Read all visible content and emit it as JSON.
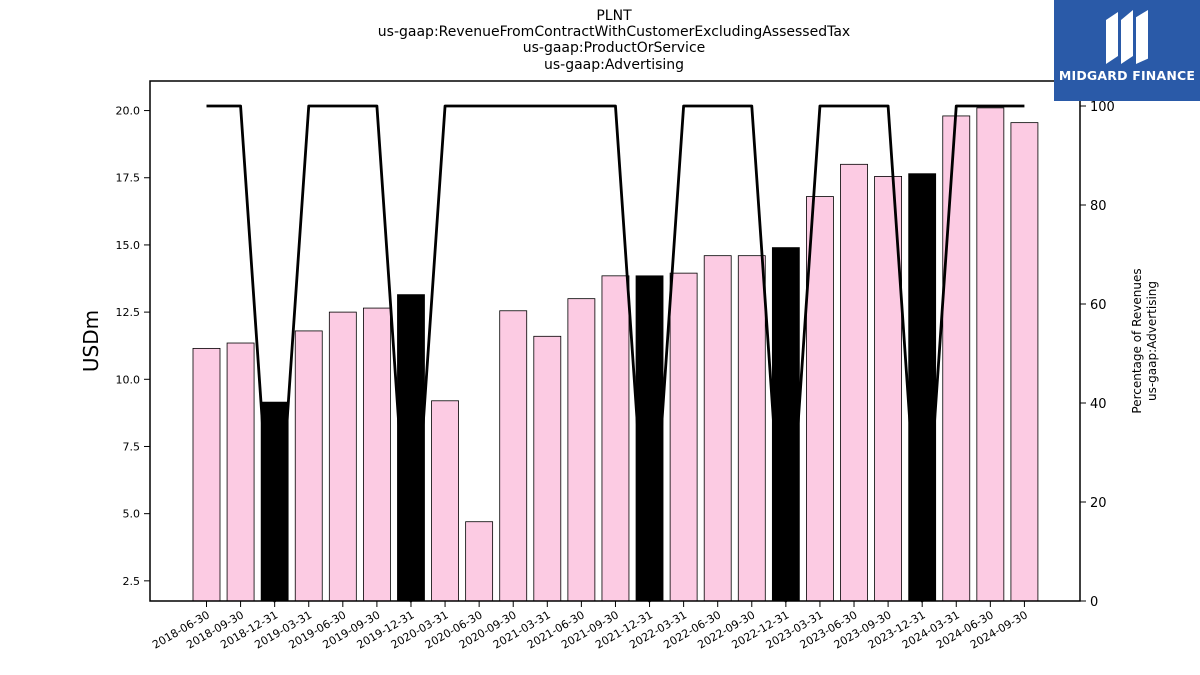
{
  "logo": {
    "text": "MIDGARD FINANCE"
  },
  "chart_data": {
    "type": "bar",
    "title_lines": [
      "PLNT",
      "us-gaap:RevenueFromContractWithCustomerExcludingAssessedTax",
      "us-gaap:ProductOrService",
      "us-gaap:Advertising"
    ],
    "ylabel": "USDm",
    "ylabel_right": [
      "Percentage of Revenues",
      "us-gaap:Advertising"
    ],
    "ylim": [
      1.75,
      21.1
    ],
    "ylim_right": [
      0,
      100
    ],
    "yticks": [
      "2.5",
      "5.0",
      "7.5",
      "10.0",
      "12.5",
      "15.0",
      "17.5",
      "20.0"
    ],
    "yticks_right": [
      "0",
      "20",
      "40",
      "60",
      "80",
      "100"
    ],
    "categories": [
      "2018-06-30",
      "2018-09-30",
      "2018-12-31",
      "2019-03-31",
      "2019-06-30",
      "2019-09-30",
      "2019-12-31",
      "2020-03-31",
      "2020-06-30",
      "2020-09-30",
      "2021-03-31",
      "2021-06-30",
      "2021-09-30",
      "2021-12-31",
      "2022-03-31",
      "2022-06-30",
      "2022-09-30",
      "2022-12-31",
      "2023-03-31",
      "2023-06-30",
      "2023-09-30",
      "2023-12-31",
      "2024-03-31",
      "2024-06-30",
      "2024-09-30"
    ],
    "values": [
      11.15,
      11.35,
      9.15,
      11.8,
      12.5,
      12.65,
      13.15,
      9.2,
      4.7,
      12.55,
      11.6,
      13.0,
      13.85,
      13.85,
      13.95,
      14.6,
      14.6,
      14.9,
      16.8,
      18.0,
      17.55,
      17.65,
      19.8,
      20.1,
      19.55
    ],
    "highlight": [
      false,
      false,
      true,
      false,
      false,
      false,
      true,
      false,
      false,
      false,
      false,
      false,
      false,
      true,
      false,
      false,
      false,
      true,
      false,
      false,
      false,
      true,
      false,
      false,
      false
    ],
    "colors": {
      "bar": "#fccbe3",
      "bar_highlight": "#000000",
      "line": "#000000"
    },
    "line_percent": [
      100,
      100,
      0,
      100,
      100,
      100,
      0,
      100,
      100,
      100,
      100,
      100,
      100,
      0,
      100,
      100,
      100,
      0,
      100,
      100,
      100,
      0,
      100,
      100,
      100
    ],
    "grid": false,
    "legend": "none"
  }
}
